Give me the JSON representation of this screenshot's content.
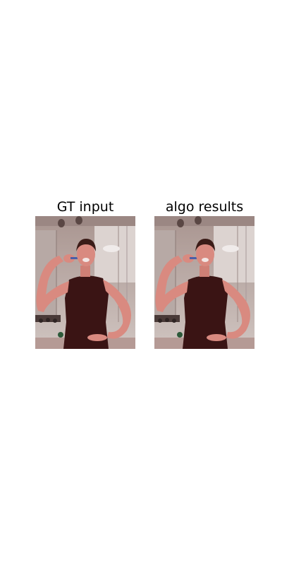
{
  "panels": [
    {
      "title": "GT input",
      "image": "photo-woman-brushing-teeth-bathroom"
    },
    {
      "title": "algo results",
      "image": "photo-woman-brushing-teeth-bathroom"
    }
  ],
  "colors": {
    "background": "#ffffff",
    "title_text": "#000000",
    "top_wall": "#b8aaa6",
    "mirror_glass": "#d6cdca",
    "shirt": "#3a1414",
    "skin": "#d98a80",
    "shelf_dark": "#4a3a38"
  }
}
